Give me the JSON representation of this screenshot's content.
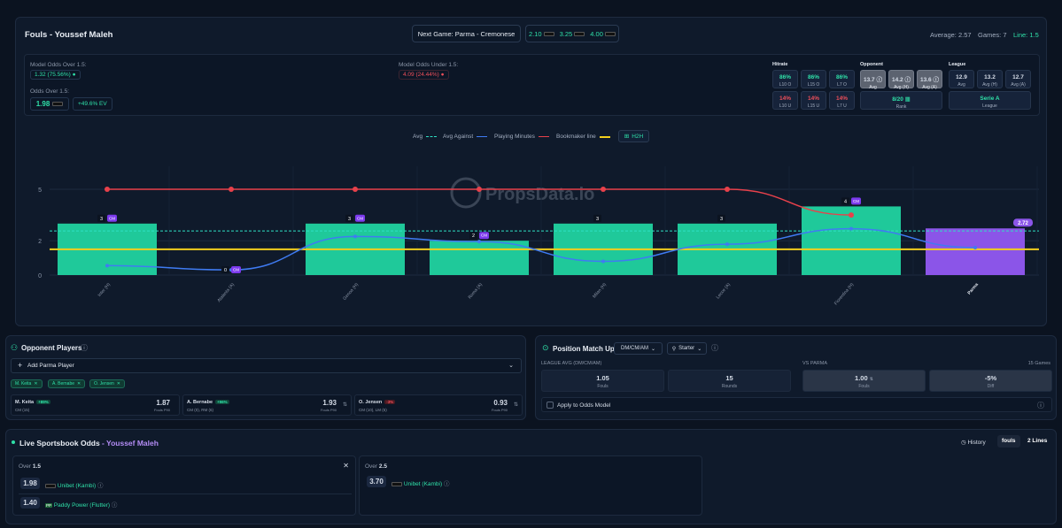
{
  "header": {
    "title": "Fouls - Youssef Maleh",
    "next_game": "Next Game: Parma - Cremonese",
    "odds": [
      "2.10",
      "3.25",
      "4.00"
    ],
    "average": "Average: 2.57",
    "games": "Games: 7",
    "line": "Line: 1.5"
  },
  "model": {
    "over_label": "Model Odds Over 1.5:",
    "over_value": "1.32 (75.56%)",
    "under_label": "Model Odds Under 1.5:",
    "under_value": "4.09 (24.44%)",
    "odds_over_label": "Odds Over 1.5:",
    "odds_over_value": "1.98",
    "ev": "+49.6% EV"
  },
  "hitrate": {
    "title": "Hitrate",
    "tiles": [
      {
        "v": "86%",
        "l": "L10 O",
        "c": "green"
      },
      {
        "v": "86%",
        "l": "L15 O",
        "c": "green"
      },
      {
        "v": "86%",
        "l": "L7 O",
        "c": "green"
      },
      {
        "v": "14%",
        "l": "L10 U",
        "c": "red"
      },
      {
        "v": "14%",
        "l": "L15 U",
        "c": "red"
      },
      {
        "v": "14%",
        "l": "L7 U",
        "c": "red"
      }
    ]
  },
  "opponent": {
    "title": "Opponent",
    "tiles": [
      {
        "v": "13.7",
        "l": "Avg"
      },
      {
        "v": "14.2",
        "l": "Avg (H)"
      },
      {
        "v": "13.6",
        "l": "Avg (A)"
      }
    ],
    "rank_value": "8/20",
    "rank_label": "Rank"
  },
  "league": {
    "title": "League",
    "tiles": [
      {
        "v": "12.9",
        "l": "Avg"
      },
      {
        "v": "13.2",
        "l": "Avg (H)"
      },
      {
        "v": "12.7",
        "l": "Avg (A)"
      }
    ],
    "name": "Serie A",
    "name_label": "League"
  },
  "legend": {
    "avg": "Avg",
    "avg_against": "Avg Against",
    "minutes": "Playing Minutes",
    "bookmaker": "Bookmaker line",
    "h2h": "H2H"
  },
  "colors": {
    "bar": "#1fc99a",
    "bar_last": "#8b55e8",
    "avg_line": "#2fe0c4",
    "avg_against": "#3f7bf2",
    "minutes": "#e8414b",
    "bookmaker": "#f2cf1d"
  },
  "chart_data": {
    "type": "bar",
    "categories": [
      "Inter (H)",
      "Atalanta (A)",
      "Genoa (H)",
      "Roma (A)",
      "Milan (H)",
      "Lecce (A)",
      "Fiorentina (H)",
      "Parma"
    ],
    "values": [
      3,
      0,
      3,
      2,
      3,
      3,
      4,
      2.72
    ],
    "value_labels": [
      "3",
      "0",
      "3",
      "2",
      "3",
      "3",
      "4",
      "2.72"
    ],
    "positions": [
      "CM",
      "CM",
      "CM",
      "CM",
      "",
      "",
      "CM",
      ""
    ],
    "avg": 2.57,
    "bookmaker_line": 1.5,
    "avg_against": [
      0.55,
      0.3,
      2.25,
      1.95,
      0.8,
      1.8,
      2.7,
      1.6
    ],
    "playing_minutes_scaled": [
      5,
      5,
      5,
      5,
      5,
      5,
      3.5
    ],
    "yticks": [
      "0",
      "2",
      "5"
    ],
    "ylim": [
      0,
      5.5
    ]
  },
  "watermark": "PropsData.io",
  "opponent_players": {
    "title": "Opponent Players",
    "add_label": "Add Parma Player",
    "chips": [
      "M. Keita",
      "A. Bernabe",
      "O. Jensen"
    ],
    "cards": [
      {
        "name": "M. Keita",
        "badge": "+89%",
        "pos": "CM (15)",
        "value": "1.87",
        "unit": "Fouls P90",
        "good": true
      },
      {
        "name": "A. Bernabe",
        "badge": "+96%",
        "pos": "CM (0), RM (6)",
        "value": "1.93",
        "unit": "Fouls P90",
        "good": true
      },
      {
        "name": "O. Jensen",
        "badge": "-3%",
        "pos": "CM (10), LM (5)",
        "value": "0.93",
        "unit": "Fouls P90",
        "good": false
      }
    ]
  },
  "position": {
    "title": "Position Match Up",
    "select": "DM/CM/AM",
    "starter": "Starter",
    "league_avg_label": "LEAGUE AVG (DM/CM/AM)",
    "vs_label": "VS PARMA",
    "games": "15 Games",
    "stats": [
      {
        "v": "1.05",
        "l": "Fouls"
      },
      {
        "v": "15",
        "l": "Rounds"
      },
      {
        "v": "1.00",
        "l": "Fouls"
      },
      {
        "v": "-5%",
        "l": "Diff"
      }
    ],
    "apply": "Apply to Odds Model"
  },
  "live": {
    "title": "Live Sportsbook Odds",
    "player": "- Youssef Maleh",
    "history": "History",
    "fouls": "fouls",
    "lines": "2 Lines",
    "over1_label": "Over",
    "over1_num": "1.5",
    "over1_books": [
      {
        "odds": "1.98",
        "name": "Unibet (Kambi)"
      },
      {
        "odds": "1.40",
        "name": "Paddy Power (Flutter)"
      }
    ],
    "over2_label": "Over",
    "over2_num": "2.5",
    "over2_books": [
      {
        "odds": "3.70",
        "name": "Unibet (Kambi)"
      }
    ]
  }
}
